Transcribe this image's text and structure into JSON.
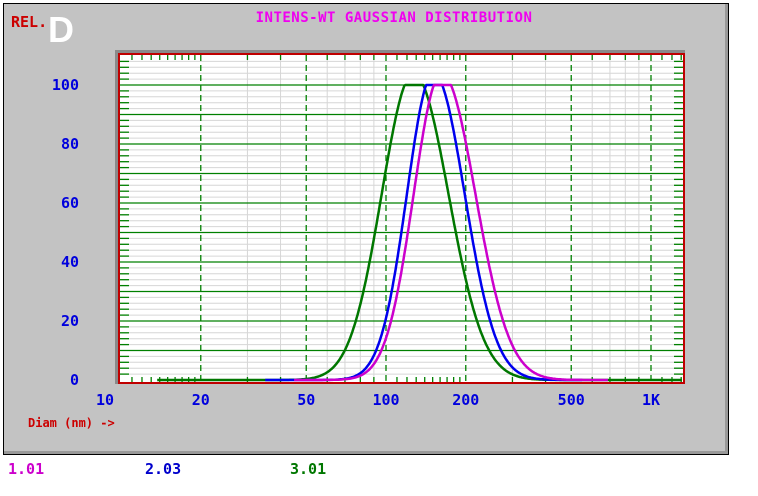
{
  "header": {
    "title": "INTENS-WT GAUSSIAN DISTRIBUTION",
    "rel_label": "REL.",
    "big_letter": "D"
  },
  "x_axis_label": "Diam (nm) ->",
  "legend": [
    {
      "label": "1.01",
      "color": "#cc00cc"
    },
    {
      "label": "2.03",
      "color": "#0000cc"
    },
    {
      "label": "3.01",
      "color": "#007700"
    }
  ],
  "colors": {
    "panel_bg": "#c3c3c3",
    "title": "#f000f0",
    "axis_text": "#0000dd",
    "red_text": "#cc0000",
    "plot_border": "#c00000",
    "grid_major": "#008000",
    "grid_minor": "#d6d6d6"
  },
  "chart_data": {
    "type": "line",
    "title": "INTENS-WT GAUSSIAN DISTRIBUTION",
    "xlabel": "Diam (nm) ->",
    "ylabel": "REL.",
    "x_scale": "log",
    "x_range_nm": [
      10,
      1320
    ],
    "y_range": [
      0,
      110
    ],
    "x_ticks": [
      {
        "label": "10",
        "value": 10
      },
      {
        "label": "20",
        "value": 20
      },
      {
        "label": "50",
        "value": 50
      },
      {
        "label": "100",
        "value": 100
      },
      {
        "label": "200",
        "value": 200
      },
      {
        "label": "500",
        "value": 500
      },
      {
        "label": "1K",
        "value": 1000
      }
    ],
    "y_ticks": [
      0,
      20,
      40,
      60,
      80,
      100
    ],
    "grid": {
      "minor_y_step": 2,
      "major_y_step": 10,
      "major_v_dashed_green": [
        20,
        50,
        100,
        200,
        500,
        1000
      ],
      "minor_v_gray": [
        30,
        40,
        60,
        70,
        80,
        90,
        300,
        400,
        600,
        700,
        800,
        900
      ],
      "edge_tick_extra": [
        11,
        12,
        13,
        14,
        15,
        16,
        17,
        18,
        19,
        110,
        120,
        130,
        140,
        150,
        160,
        170,
        180,
        190,
        1100,
        1200,
        1300
      ]
    },
    "series": [
      {
        "name": "1.01",
        "color": "#cc00cc",
        "peak_diameter_nm": 162,
        "peak_value": 100,
        "sigma_log_left": 0.105,
        "sigma_log_right": 0.128,
        "amplitude": 104,
        "range_nm": [
          45,
          690
        ]
      },
      {
        "name": "2.03",
        "color": "#0000ee",
        "peak_diameter_nm": 151,
        "peak_value": 100,
        "sigma_log_left": 0.1,
        "sigma_log_right": 0.118,
        "amplitude": 104,
        "range_nm": [
          35,
          550
        ]
      },
      {
        "name": "3.01",
        "color": "#007700",
        "peak_diameter_nm": 127,
        "peak_value": 100,
        "sigma_log_left": 0.12,
        "sigma_log_right": 0.132,
        "amplitude": 104,
        "range_nm": [
          13.7,
          1320
        ]
      }
    ]
  }
}
